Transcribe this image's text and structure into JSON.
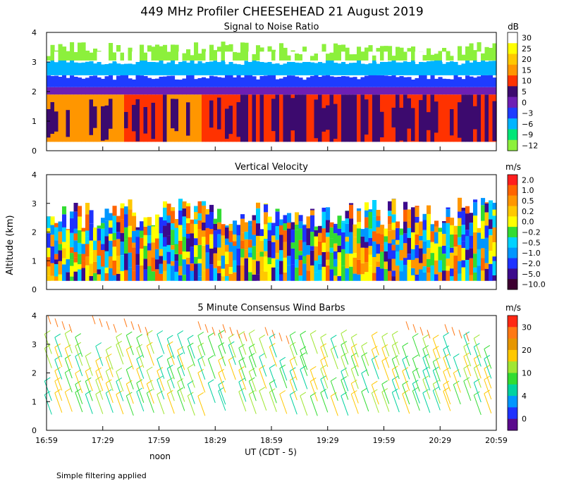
{
  "figure": {
    "title": "449 MHz Profiler CHEESEHEAD 21 August 2019",
    "ylabel": "Altitude (km)",
    "xlabel": "UT  (CDT - 5)",
    "noon_label": "noon",
    "footnote": "Simple filtering applied"
  },
  "chart_data": [
    {
      "type": "heatmap",
      "title": "Signal to Noise Ratio",
      "colorbar_unit": "dB",
      "colorbar_ticks": [
        "30",
        "25",
        "20",
        "15",
        "10",
        "5",
        "0",
        "−3",
        "−6",
        "−9",
        "−12"
      ],
      "colorbar_colors": [
        "#ffffff",
        "#ffff00",
        "#ffc800",
        "#ff9600",
        "#ff3200",
        "#3c0a6e",
        "#6e1eb4",
        "#1e3cff",
        "#00b4ff",
        "#00e678",
        "#8cf03c"
      ],
      "x_ticks": [
        "16:59",
        "17:29",
        "17:59",
        "18:29",
        "18:59",
        "19:29",
        "19:59",
        "20:29",
        "20:59"
      ],
      "ylim": [
        0,
        4
      ],
      "y_ticks": [
        "0",
        "1",
        "2",
        "3",
        "4"
      ]
    },
    {
      "type": "heatmap",
      "title": "Vertical Velocity",
      "colorbar_unit": "m/s",
      "colorbar_ticks": [
        "2.0",
        "1.0",
        "0.5",
        "0.2",
        "0.0",
        "−0.2",
        "−0.5",
        "−1.0",
        "−2.0",
        "−5.0",
        "−10.0"
      ],
      "colorbar_colors": [
        "#ff1e1e",
        "#ff6400",
        "#ff9600",
        "#ffc800",
        "#ffff00",
        "#32dc32",
        "#00d2ff",
        "#0096ff",
        "#1e32ff",
        "#3c0a8c",
        "#3c0030"
      ],
      "x_ticks": [
        "16:59",
        "17:29",
        "17:59",
        "18:29",
        "18:59",
        "19:29",
        "19:59",
        "20:29",
        "20:59"
      ],
      "ylim": [
        0,
        4
      ],
      "y_ticks": [
        "0",
        "1",
        "2",
        "3",
        "4"
      ]
    },
    {
      "type": "wind_barbs",
      "title": "5 Minute Consensus Wind Barbs",
      "colorbar_unit": "m/s",
      "colorbar_ticks": [
        "30",
        "20",
        "10",
        "4",
        "0"
      ],
      "colorbar_colors": [
        "#ff2814",
        "#ff7814",
        "#e69600",
        "#ffc800",
        "#a0e632",
        "#32dc32",
        "#00d2a0",
        "#0096ff",
        "#1e32ff",
        "#5a0a8c"
      ],
      "x_ticks": [
        "16:59",
        "17:29",
        "17:59",
        "18:29",
        "18:59",
        "19:29",
        "19:59",
        "20:29",
        "20:59"
      ],
      "ylim": [
        0,
        4
      ],
      "y_ticks": [
        "0",
        "1",
        "2",
        "3",
        "4"
      ]
    }
  ]
}
